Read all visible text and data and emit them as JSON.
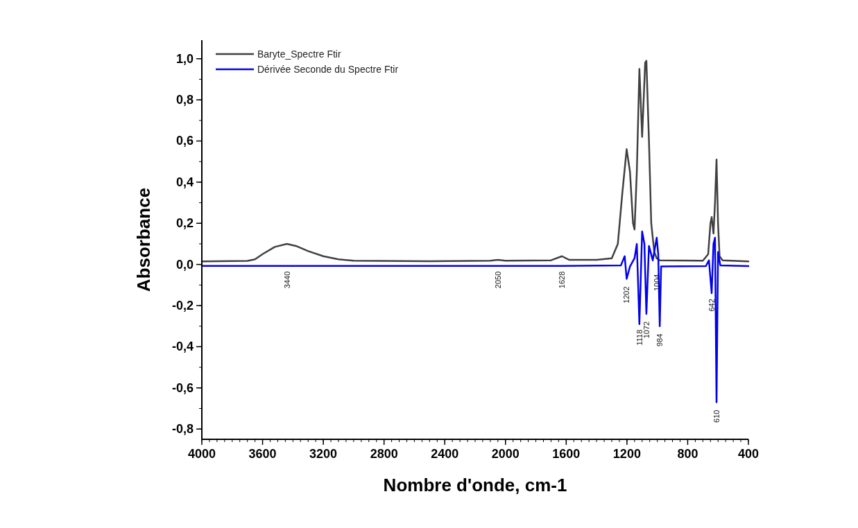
{
  "chart_data": {
    "type": "line",
    "xlabel": "Nombre d'onde, cm-1",
    "ylabel": "Absorbance",
    "xlim": [
      4000,
      400
    ],
    "xticks": [
      4000,
      3600,
      3200,
      2800,
      2400,
      2000,
      1600,
      1200,
      800,
      400
    ],
    "ylim": [
      -0.85,
      1.09
    ],
    "yticks": [
      {
        "value": -0.8,
        "label": "-0,8"
      },
      {
        "value": -0.6,
        "label": "-0,6"
      },
      {
        "value": -0.4,
        "label": "-0,4"
      },
      {
        "value": -0.2,
        "label": "-0,2"
      },
      {
        "value": 0,
        "label": "0,0"
      },
      {
        "value": 0.2,
        "label": "0,2"
      },
      {
        "value": 0.4,
        "label": "0,4"
      },
      {
        "value": 0.6,
        "label": "0,6"
      },
      {
        "value": 0.8,
        "label": "0,8"
      },
      {
        "value": 1,
        "label": "1,0"
      }
    ],
    "grid": false,
    "legend": "top left",
    "marker": "none",
    "line_style": "solid",
    "series": [
      {
        "name": "Baryte_Spectre Ftir",
        "color": "#404040",
        "x": [
          4000,
          3700,
          3650,
          3600,
          3520,
          3440,
          3380,
          3300,
          3200,
          3100,
          3000,
          2500,
          2100,
          2050,
          2000,
          1700,
          1628,
          1580,
          1400,
          1300,
          1260,
          1230,
          1202,
          1180,
          1160,
          1150,
          1135,
          1118,
          1100,
          1080,
          1072,
          1055,
          1040,
          1020,
          1004,
          984,
          700,
          665,
          650,
          642,
          630,
          620,
          610,
          600,
          590,
          570,
          400
        ],
        "values": [
          0.015,
          0.017,
          0.025,
          0.05,
          0.085,
          0.1,
          0.09,
          0.065,
          0.04,
          0.025,
          0.018,
          0.016,
          0.018,
          0.022,
          0.018,
          0.02,
          0.04,
          0.022,
          0.022,
          0.03,
          0.1,
          0.35,
          0.56,
          0.45,
          0.2,
          0.17,
          0.45,
          0.95,
          0.62,
          0.98,
          0.99,
          0.6,
          0.2,
          0.06,
          0.03,
          0.02,
          0.018,
          0.05,
          0.2,
          0.23,
          0.15,
          0.3,
          0.51,
          0.2,
          0.04,
          0.02,
          0.015
        ]
      },
      {
        "name": "Dérivée Seconde du Spectre Ftir",
        "color": "#0000ee",
        "x": [
          4000,
          3440,
          3000,
          2050,
          2000,
          1628,
          1240,
          1215,
          1202,
          1180,
          1150,
          1135,
          1118,
          1100,
          1085,
          1072,
          1055,
          1030,
          1004,
          994,
          984,
          975,
          680,
          660,
          642,
          630,
          620,
          610,
          600,
          585,
          400
        ],
        "values": [
          -0.007,
          -0.007,
          -0.007,
          -0.007,
          -0.007,
          -0.007,
          -0.005,
          0.04,
          -0.07,
          -0.01,
          0.03,
          0.1,
          -0.29,
          0.16,
          0.1,
          -0.24,
          0.09,
          0.02,
          0.13,
          0.05,
          -0.3,
          -0.01,
          -0.008,
          0.02,
          -0.14,
          0.1,
          0.13,
          -0.67,
          0.06,
          -0.005,
          -0.008
        ]
      }
    ],
    "annotations": [
      {
        "text": "3440",
        "x": 3440,
        "y": -0.007
      },
      {
        "text": "2050",
        "x": 2050,
        "y": -0.007
      },
      {
        "text": "1628",
        "x": 1628,
        "y": -0.007
      },
      {
        "text": "1202",
        "x": 1202,
        "y": -0.08
      },
      {
        "text": "1118",
        "x": 1118,
        "y": -0.29
      },
      {
        "text": "1072",
        "x": 1072,
        "y": -0.25
      },
      {
        "text": "1004",
        "x": 1004,
        "y": -0.02
      },
      {
        "text": "984",
        "x": 984,
        "y": -0.31
      },
      {
        "text": "642",
        "x": 642,
        "y": -0.14
      },
      {
        "text": "610",
        "x": 610,
        "y": -0.68
      }
    ]
  }
}
